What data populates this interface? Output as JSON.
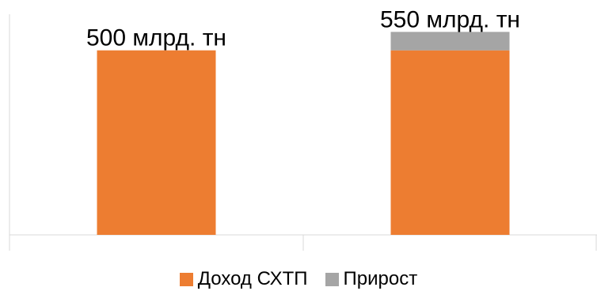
{
  "chart_data": {
    "type": "bar",
    "stacked": true,
    "categories": [
      "",
      ""
    ],
    "series": [
      {
        "name": "Доход СХТП",
        "values": [
          500,
          500
        ],
        "color": "#ED7D31"
      },
      {
        "name": "Прирост",
        "values": [
          0,
          50
        ],
        "color": "#A5A5A5"
      }
    ],
    "data_labels": [
      "500 млрд. тн",
      "550 млрд. тн"
    ],
    "ylim": [
      0,
      600
    ],
    "grid": false,
    "legend_position": "bottom",
    "title": "",
    "xlabel": "",
    "ylabel": ""
  }
}
